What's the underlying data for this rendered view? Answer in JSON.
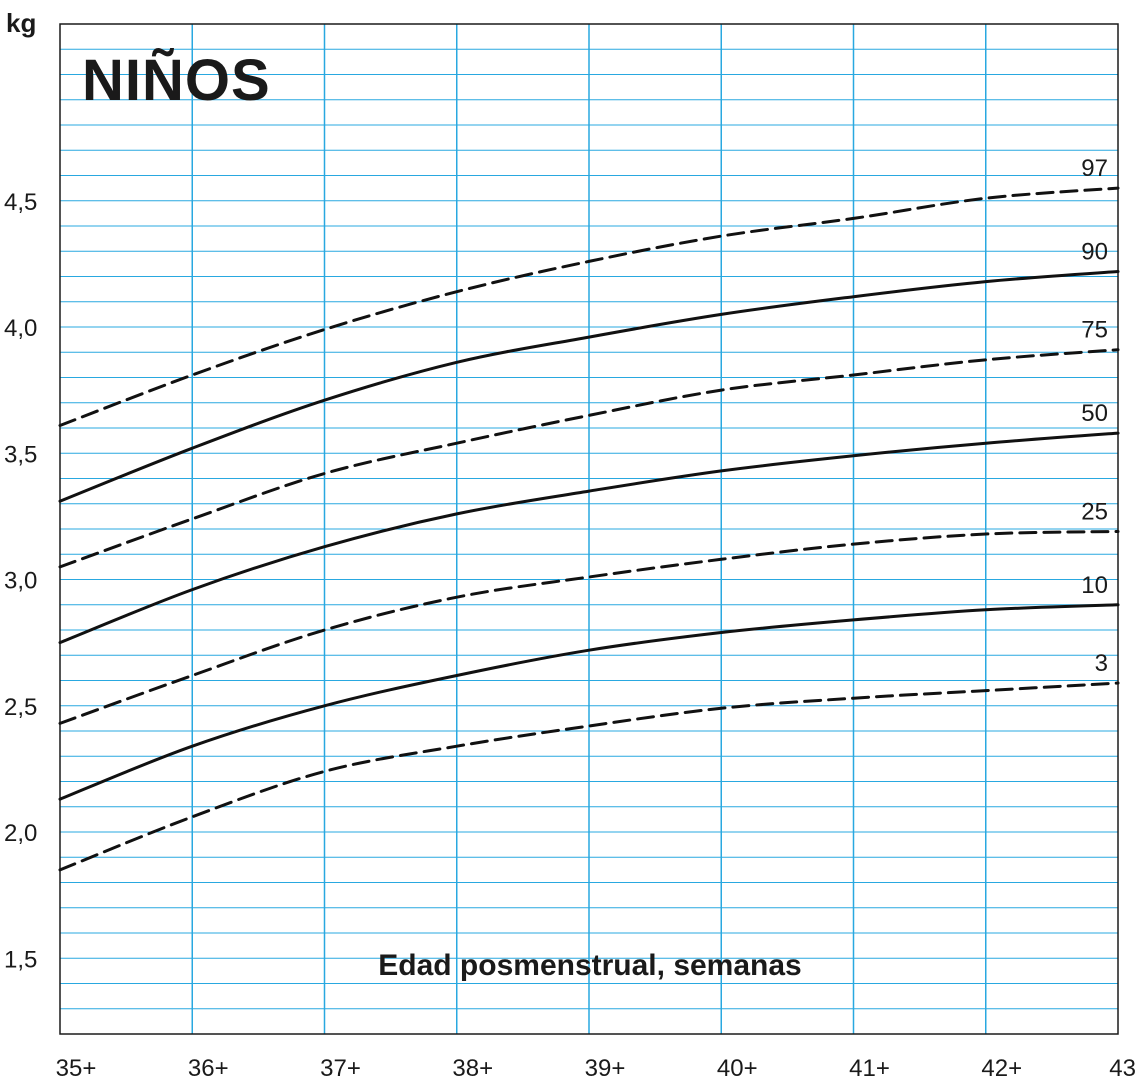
{
  "chart_data": {
    "type": "line",
    "title": "NIÑOS",
    "xlabel": "Edad posmenstrual, semanas",
    "ylabel": "kg",
    "xlim": [
      35,
      43
    ],
    "ylim": [
      1.2,
      5.2
    ],
    "x_ticks": [
      35,
      36,
      37,
      38,
      39,
      40,
      41,
      42,
      43
    ],
    "x_tick_labels": [
      "35+",
      "36+",
      "37+",
      "38+",
      "39+",
      "40+",
      "41+",
      "42+",
      "43"
    ],
    "y_ticks": [
      1.5,
      2.0,
      2.5,
      3.0,
      3.5,
      4.0,
      4.5
    ],
    "y_tick_labels": [
      "1,5",
      "2,0",
      "2,5",
      "3,0",
      "3,5",
      "4,0",
      "4,5"
    ],
    "grid": true,
    "colors": {
      "grid": "#29a8e0",
      "curve": "#111111"
    },
    "x": [
      35,
      36,
      37,
      38,
      39,
      40,
      41,
      42,
      43
    ],
    "series": [
      {
        "name": "97",
        "style": "dashed",
        "values": [
          3.61,
          3.81,
          3.99,
          4.14,
          4.26,
          4.36,
          4.43,
          4.51,
          4.55
        ]
      },
      {
        "name": "90",
        "style": "solid",
        "values": [
          3.31,
          3.52,
          3.71,
          3.86,
          3.96,
          4.05,
          4.12,
          4.18,
          4.22
        ]
      },
      {
        "name": "75",
        "style": "dashed",
        "values": [
          3.05,
          3.24,
          3.42,
          3.54,
          3.65,
          3.75,
          3.81,
          3.87,
          3.91
        ]
      },
      {
        "name": "50",
        "style": "solid",
        "values": [
          2.75,
          2.96,
          3.13,
          3.26,
          3.35,
          3.43,
          3.49,
          3.54,
          3.58
        ]
      },
      {
        "name": "25",
        "style": "dashed",
        "values": [
          2.43,
          2.62,
          2.8,
          2.93,
          3.01,
          3.08,
          3.14,
          3.18,
          3.19
        ]
      },
      {
        "name": "10",
        "style": "solid",
        "values": [
          2.13,
          2.34,
          2.5,
          2.62,
          2.72,
          2.79,
          2.84,
          2.88,
          2.9
        ]
      },
      {
        "name": "3",
        "style": "dashed",
        "values": [
          1.85,
          2.06,
          2.24,
          2.34,
          2.42,
          2.49,
          2.53,
          2.56,
          2.59
        ]
      }
    ]
  }
}
